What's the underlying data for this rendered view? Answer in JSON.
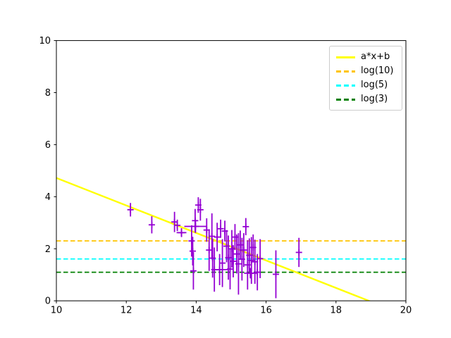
{
  "chart_data": {
    "type": "scatter",
    "title": "",
    "xlabel": "",
    "ylabel": "",
    "xlim": [
      10,
      20
    ],
    "ylim": [
      0,
      10
    ],
    "xticks": [
      10,
      12,
      14,
      16,
      18,
      20
    ],
    "xtick_labels": [
      "10",
      "12",
      "14",
      "16",
      "18",
      "20"
    ],
    "yticks": [
      0,
      2,
      4,
      6,
      8,
      10
    ],
    "ytick_labels": [
      "0",
      "2",
      "4",
      "6",
      "8",
      "10"
    ],
    "grid": false,
    "legend_position": "upper right",
    "fit_line": {
      "label": "a*x+b",
      "a": -0.528,
      "b": 10.0,
      "color": "#ffff00",
      "style": "solid"
    },
    "hlines": [
      {
        "label": "log(10)",
        "y": 2.3026,
        "color": "#ffc400",
        "style": "dashed"
      },
      {
        "label": "log(5)",
        "y": 1.6094,
        "color": "#00ffff",
        "style": "dashed"
      },
      {
        "label": "log(3)",
        "y": 1.0986,
        "color": "#008000",
        "style": "dashed"
      }
    ],
    "errorbar_series": {
      "name": "data-points",
      "color": "#9400d3",
      "marker": "+",
      "points": [
        {
          "x": 12.12,
          "y": 3.5,
          "yerr": 0.26
        },
        {
          "x": 12.73,
          "y": 2.92,
          "yerr": 0.33
        },
        {
          "x": 13.38,
          "y": 3.03,
          "yerr": 0.39
        },
        {
          "x": 13.46,
          "y": 2.9,
          "yerr": 0.22
        },
        {
          "x": 13.58,
          "y": 2.62,
          "yerr": 0.17,
          "xerr": 0.14
        },
        {
          "x": 13.87,
          "y": 2.3,
          "yerr": 0.6
        },
        {
          "x": 13.9,
          "y": 1.91,
          "yerr": 0.55
        },
        {
          "x": 13.92,
          "y": 1.15,
          "yerr": 0.72
        },
        {
          "x": 13.97,
          "y": 3.08,
          "yerr": 0.45
        },
        {
          "x": 13.98,
          "y": 2.86,
          "yerr": 0.25,
          "xerr": 0.32
        },
        {
          "x": 14.06,
          "y": 3.68,
          "yerr": 0.3
        },
        {
          "x": 14.12,
          "y": 3.5,
          "yerr": 0.42
        },
        {
          "x": 14.3,
          "y": 2.72,
          "yerr": 0.45
        },
        {
          "x": 14.37,
          "y": 1.95,
          "yerr": 0.8
        },
        {
          "x": 14.45,
          "y": 2.48,
          "yerr": 0.88
        },
        {
          "x": 14.47,
          "y": 1.64,
          "yerr": 0.75
        },
        {
          "x": 14.52,
          "y": 1.2,
          "yerr": 0.85
        },
        {
          "x": 14.6,
          "y": 2.45,
          "yerr": 0.55
        },
        {
          "x": 14.67,
          "y": 1.2,
          "yerr": 0.6,
          "xerr": 0.23
        },
        {
          "x": 14.7,
          "y": 2.77,
          "yerr": 0.35
        },
        {
          "x": 14.75,
          "y": 1.45,
          "yerr": 0.92
        },
        {
          "x": 14.82,
          "y": 2.68,
          "yerr": 0.4
        },
        {
          "x": 14.87,
          "y": 2.1,
          "yerr": 0.62
        },
        {
          "x": 14.92,
          "y": 1.66,
          "yerr": 0.85
        },
        {
          "x": 14.97,
          "y": 1.22,
          "yerr": 0.78
        },
        {
          "x": 15.02,
          "y": 2.0,
          "yerr": 0.72
        },
        {
          "x": 15.06,
          "y": 1.52,
          "yerr": 0.62
        },
        {
          "x": 15.11,
          "y": 2.45,
          "yerr": 0.5
        },
        {
          "x": 15.16,
          "y": 1.8,
          "yerr": 0.75
        },
        {
          "x": 15.21,
          "y": 1.42,
          "yerr": 1.18
        },
        {
          "x": 15.26,
          "y": 2.15,
          "yerr": 0.55
        },
        {
          "x": 15.31,
          "y": 1.6,
          "yerr": 0.82
        },
        {
          "x": 15.36,
          "y": 1.95,
          "yerr": 0.65
        },
        {
          "x": 15.42,
          "y": 2.85,
          "yerr": 0.33
        },
        {
          "x": 15.47,
          "y": 1.38,
          "yerr": 0.95
        },
        {
          "x": 15.52,
          "y": 1.75,
          "yerr": 0.65
        },
        {
          "x": 15.55,
          "y": 1.06,
          "yerr": 0.2,
          "xerr": 0.18
        },
        {
          "x": 15.58,
          "y": 1.55,
          "yerr": 0.9
        },
        {
          "x": 15.63,
          "y": 2.05,
          "yerr": 0.5
        },
        {
          "x": 15.68,
          "y": 1.5,
          "yerr": 0.85
        },
        {
          "x": 15.75,
          "y": 1.1,
          "yerr": 0.7
        },
        {
          "x": 15.83,
          "y": 1.62,
          "yerr": 0.75
        },
        {
          "x": 16.28,
          "y": 1.02,
          "yerr": 0.92
        },
        {
          "x": 16.94,
          "y": 1.86,
          "yerr": 0.56
        }
      ]
    },
    "legend_entries": [
      {
        "label": "a*x+b",
        "color": "#ffff00",
        "style": "solid"
      },
      {
        "label": "log(10)",
        "color": "#ffc400",
        "style": "dashed"
      },
      {
        "label": "log(5)",
        "color": "#00ffff",
        "style": "dashed"
      },
      {
        "label": "log(3)",
        "color": "#008000",
        "style": "dashed"
      }
    ]
  }
}
